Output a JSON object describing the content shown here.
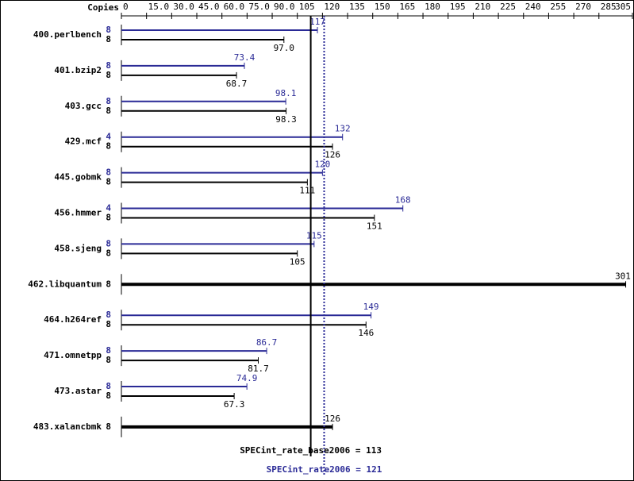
{
  "chart_data": {
    "type": "bar",
    "x_label": "Copies",
    "xlim": [
      0,
      305
    ],
    "xticks": [
      0,
      {
        "value": 15,
        "label": "15.0"
      },
      {
        "value": 30,
        "label": "30.0"
      },
      {
        "value": 45,
        "label": "45.0"
      },
      {
        "value": 60,
        "label": "60.0"
      },
      {
        "value": 75,
        "label": "75.0"
      },
      {
        "value": 90,
        "label": "90.0"
      },
      105,
      120,
      135,
      150,
      165,
      180,
      195,
      210,
      225,
      240,
      255,
      270,
      285,
      305
    ],
    "peak_color": "#2a2a96",
    "base_color": "#000000",
    "rows": [
      {
        "name": "400.perlbench",
        "peak": {
          "copies": 8,
          "value": 117
        },
        "base": {
          "copies": 8,
          "value": 97,
          "value_label": "97.0"
        }
      },
      {
        "name": "401.bzip2",
        "peak": {
          "copies": 8,
          "value": 73.4
        },
        "base": {
          "copies": 8,
          "value": 68.7
        }
      },
      {
        "name": "403.gcc",
        "peak": {
          "copies": 8,
          "value": 98.1
        },
        "base": {
          "copies": 8,
          "value": 98.3
        }
      },
      {
        "name": "429.mcf",
        "peak": {
          "copies": 4,
          "value": 132
        },
        "base": {
          "copies": 8,
          "value": 126
        }
      },
      {
        "name": "445.gobmk",
        "peak": {
          "copies": 8,
          "value": 120
        },
        "base": {
          "copies": 8,
          "value": 111
        }
      },
      {
        "name": "456.hmmer",
        "peak": {
          "copies": 4,
          "value": 168
        },
        "base": {
          "copies": 8,
          "value": 151
        }
      },
      {
        "name": "458.sjeng",
        "peak": {
          "copies": 8,
          "value": 115
        },
        "base": {
          "copies": 8,
          "value": 105
        }
      },
      {
        "name": "462.libquantum",
        "single": {
          "copies": 8,
          "value": 301
        }
      },
      {
        "name": "464.h264ref",
        "peak": {
          "copies": 8,
          "value": 149
        },
        "base": {
          "copies": 8,
          "value": 146
        }
      },
      {
        "name": "471.omnetpp",
        "peak": {
          "copies": 8,
          "value": 86.7
        },
        "base": {
          "copies": 8,
          "value": 81.7
        }
      },
      {
        "name": "473.astar",
        "peak": {
          "copies": 8,
          "value": 74.9
        },
        "base": {
          "copies": 8,
          "value": 67.3
        }
      },
      {
        "name": "483.xalancbmk",
        "single": {
          "copies": 8,
          "value": 126
        }
      }
    ],
    "base_reference": {
      "label": "SPECint_rate_base2006 = 113",
      "value": 113
    },
    "peak_reference": {
      "label": "SPECint_rate2006 = 121",
      "value": 121
    }
  }
}
